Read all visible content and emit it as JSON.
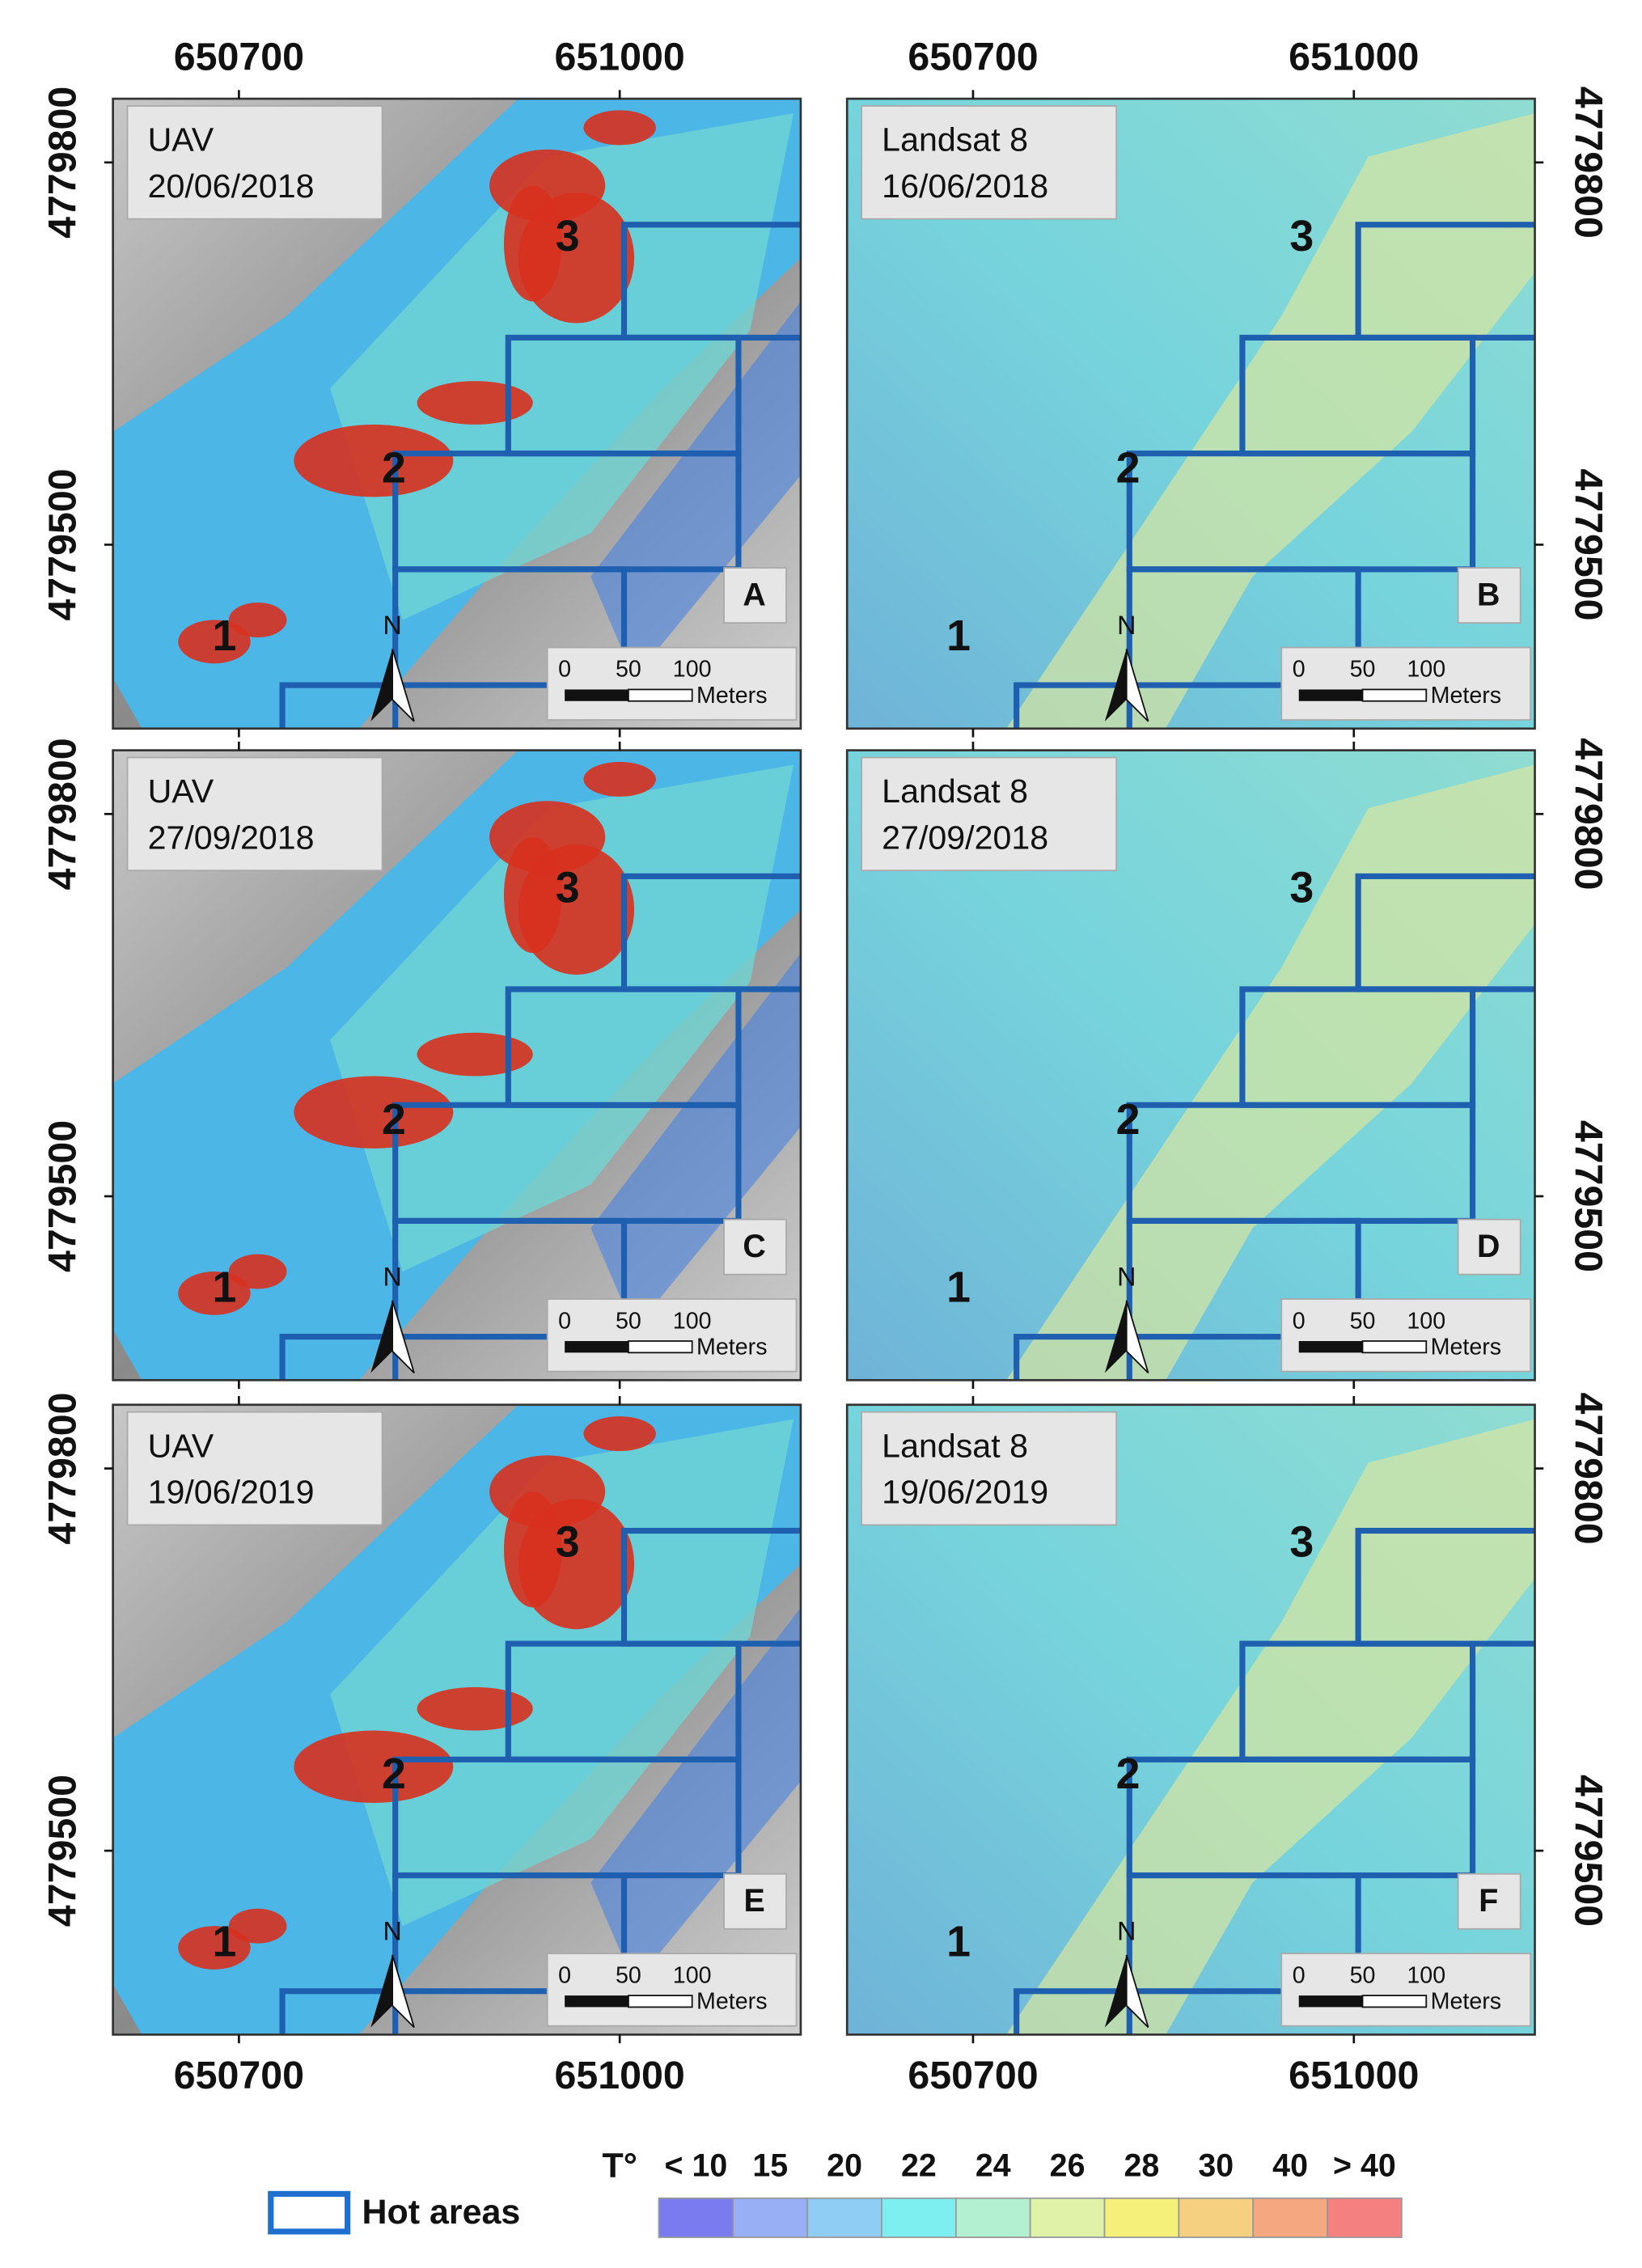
{
  "x_ticks": [
    650700,
    651000
  ],
  "y_ticks": [
    4779800,
    4779500
  ],
  "panels": [
    {
      "sensor": "UAV",
      "date": "20/06/2018",
      "letter": "A"
    },
    {
      "sensor": "Landsat 8",
      "date": "16/06/2018",
      "letter": "B"
    },
    {
      "sensor": "UAV",
      "date": "27/09/2018",
      "letter": "C"
    },
    {
      "sensor": "Landsat 8",
      "date": "27/09/2018",
      "letter": "D"
    },
    {
      "sensor": "UAV",
      "date": "19/06/2019",
      "letter": "E"
    },
    {
      "sensor": "Landsat 8",
      "date": "19/06/2019",
      "letter": "F"
    }
  ],
  "areas": [
    "1",
    "2",
    "3"
  ],
  "scale_bar": {
    "ticks": [
      0,
      50,
      100
    ],
    "unit": "Meters"
  },
  "north": "N",
  "legend": {
    "hot_areas": "Hot areas",
    "temperature_title": "T°",
    "classes": [
      {
        "label": "< 10",
        "color": "#7b7bf0"
      },
      {
        "label": "15",
        "color": "#98aef5"
      },
      {
        "label": "20",
        "color": "#8fcdf5"
      },
      {
        "label": "22",
        "color": "#7eeff0"
      },
      {
        "label": "24",
        "color": "#b3f0d2"
      },
      {
        "label": "26",
        "color": "#dff2a8"
      },
      {
        "label": "28",
        "color": "#f5f07a"
      },
      {
        "label": "30",
        "color": "#f5d080"
      },
      {
        "label": "40",
        "color": "#f5a880"
      },
      {
        "label": "> 40",
        "color": "#f58080"
      }
    ]
  }
}
